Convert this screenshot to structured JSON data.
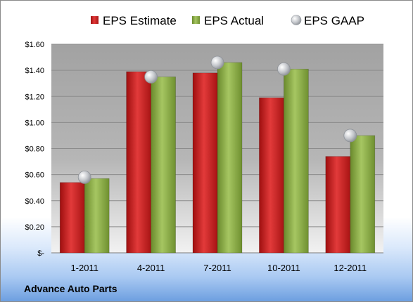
{
  "chart_data": {
    "type": "bar",
    "categories": [
      "1-2011",
      "4-2011",
      "7-2011",
      "10-2011",
      "12-2011"
    ],
    "series": [
      {
        "name": "EPS Estimate",
        "kind": "bar",
        "color": "#d42020",
        "values": [
          0.54,
          1.39,
          1.38,
          1.19,
          0.74
        ]
      },
      {
        "name": "EPS Actual",
        "kind": "bar",
        "color": "#8fb24a",
        "values": [
          0.57,
          1.35,
          1.46,
          1.41,
          0.9
        ]
      },
      {
        "name": "EPS GAAP",
        "kind": "marker",
        "color": "#b8bcc2",
        "values": [
          0.58,
          1.35,
          1.46,
          1.41,
          0.9
        ]
      }
    ],
    "y_ticks": [
      "$-",
      "$0.20",
      "$0.40",
      "$0.60",
      "$0.80",
      "$1.00",
      "$1.20",
      "$1.40",
      "$1.60"
    ],
    "ylim": [
      0,
      1.6
    ],
    "grid": true,
    "legend_position": "top"
  },
  "caption": "Advance Auto Parts"
}
